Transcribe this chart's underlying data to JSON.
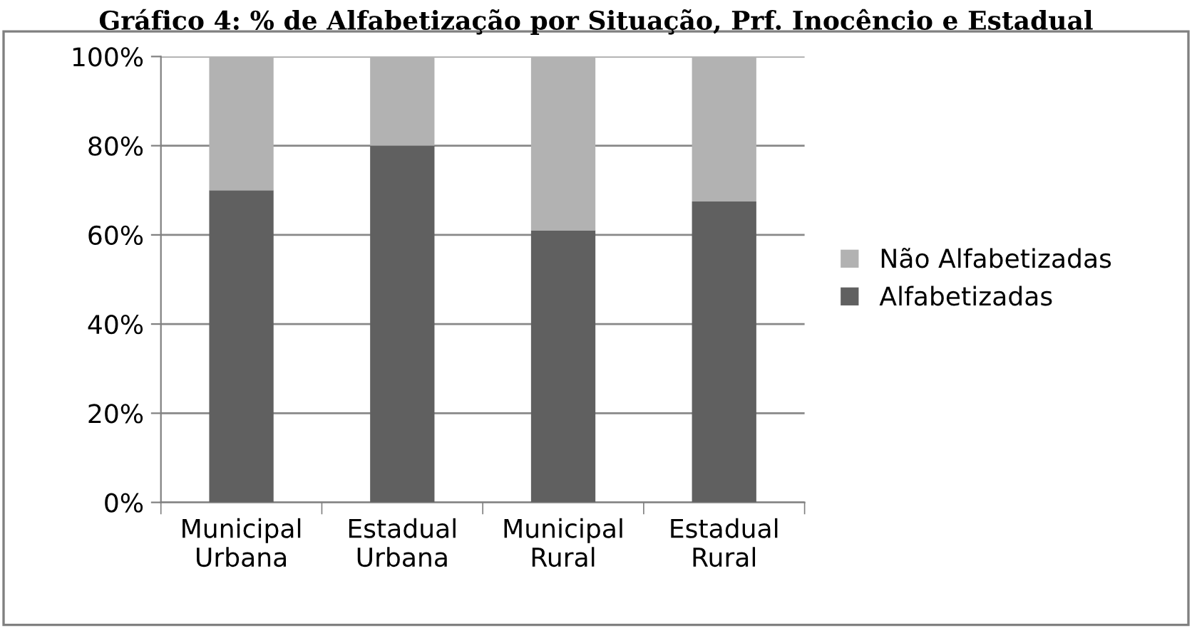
{
  "chart_data": {
    "type": "bar",
    "title": "Gráfico 4: % de Alfabetização por Situação, Prf. Inocêncio e Estadual",
    "stacked": true,
    "categories": [
      "Municipal\nUrbana",
      "Estadual\nUrbana",
      "Municipal\nRural",
      "Estadual\nRural"
    ],
    "series": [
      {
        "name": "Alfabetizadas",
        "color": "#606060",
        "values": [
          70,
          80,
          61,
          67.5
        ]
      },
      {
        "name": "Não Alfabetizadas",
        "color": "#b2b2b2",
        "values": [
          30,
          20,
          39,
          32.5
        ]
      }
    ],
    "ylim": [
      0,
      100
    ],
    "yticks": [
      {
        "value": 0,
        "label": "0%"
      },
      {
        "value": 20,
        "label": "20%"
      },
      {
        "value": 40,
        "label": "40%"
      },
      {
        "value": 60,
        "label": "60%"
      },
      {
        "value": 80,
        "label": "80%"
      },
      {
        "value": 100,
        "label": "100%"
      }
    ],
    "grid": "y",
    "legend": "right"
  }
}
